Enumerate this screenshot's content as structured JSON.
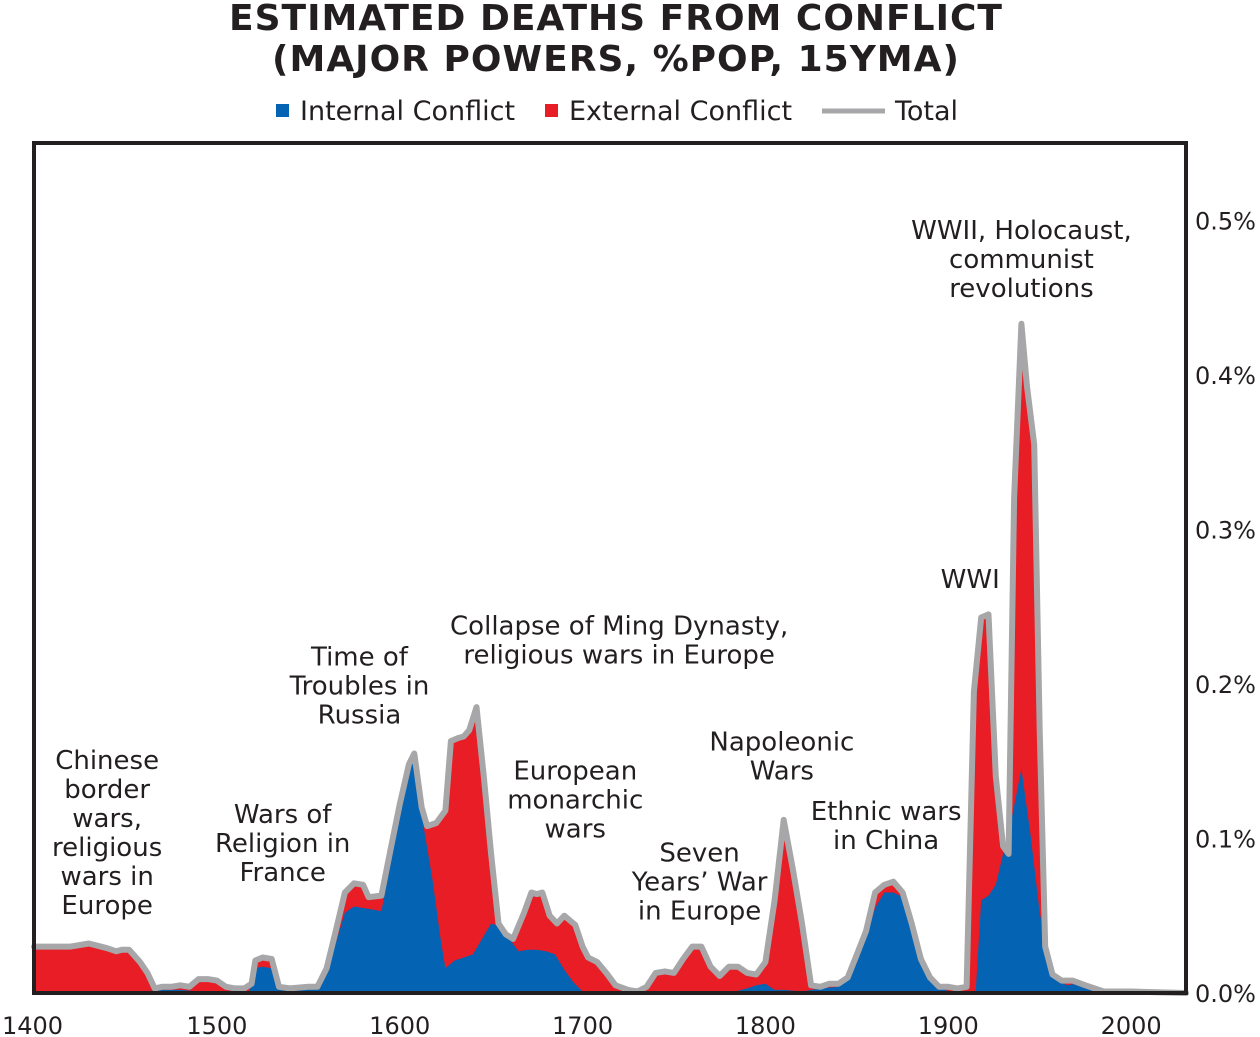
{
  "chart_data": {
    "type": "area",
    "title_lines": [
      "ESTIMATED DEATHS FROM CONFLICT",
      "(MAJOR POWERS, %POP, 15YMA)"
    ],
    "legend": [
      {
        "name": "Internal Conflict",
        "color": "#0563b3",
        "kind": "square"
      },
      {
        "name": "External Conflict",
        "color": "#e81d25",
        "kind": "square"
      },
      {
        "name": "Total",
        "color": "#a7a7a9",
        "kind": "line"
      }
    ],
    "legend_position": "top-center",
    "xlim": [
      1400,
      2030
    ],
    "ylim": [
      0,
      0.55
    ],
    "y_axis_side": "right",
    "grid": false,
    "x_ticks": [
      {
        "value": 1400,
        "label": "1400"
      },
      {
        "value": 1500,
        "label": "1500"
      },
      {
        "value": 1600,
        "label": "1600"
      },
      {
        "value": 1700,
        "label": "1700"
      },
      {
        "value": 1800,
        "label": "1800"
      },
      {
        "value": 1900,
        "label": "1900"
      },
      {
        "value": 2000,
        "label": "2000"
      }
    ],
    "y_ticks": [
      {
        "value": 0.0,
        "label": "0.0%"
      },
      {
        "value": 0.1,
        "label": "0.1%"
      },
      {
        "value": 0.2,
        "label": "0.2%"
      },
      {
        "value": 0.3,
        "label": "0.3%"
      },
      {
        "value": 0.4,
        "label": "0.4%"
      },
      {
        "value": 0.5,
        "label": "0.5%"
      }
    ],
    "series": [
      {
        "name": "Internal Conflict",
        "color": "#0563b3",
        "points": [
          [
            1400,
            0
          ],
          [
            1440,
            0
          ],
          [
            1450,
            0
          ],
          [
            1460,
            0.001
          ],
          [
            1470,
            0.002
          ],
          [
            1480,
            0.002
          ],
          [
            1490,
            0.001
          ],
          [
            1500,
            0.001
          ],
          [
            1510,
            0.001
          ],
          [
            1518,
            0.001
          ],
          [
            1520,
            0.016
          ],
          [
            1525,
            0.017
          ],
          [
            1530,
            0.016
          ],
          [
            1533,
            0.004
          ],
          [
            1540,
            0.002
          ],
          [
            1550,
            0.003
          ],
          [
            1555,
            0.003
          ],
          [
            1560,
            0.013
          ],
          [
            1565,
            0.032
          ],
          [
            1570,
            0.052
          ],
          [
            1575,
            0.056
          ],
          [
            1580,
            0.055
          ],
          [
            1585,
            0.054
          ],
          [
            1590,
            0.053
          ],
          [
            1595,
            0.084
          ],
          [
            1600,
            0.116
          ],
          [
            1605,
            0.145
          ],
          [
            1608,
            0.152
          ],
          [
            1612,
            0.115
          ],
          [
            1618,
            0.073
          ],
          [
            1622,
            0.038
          ],
          [
            1625,
            0.016
          ],
          [
            1630,
            0.021
          ],
          [
            1635,
            0.023
          ],
          [
            1640,
            0.025
          ],
          [
            1645,
            0.035
          ],
          [
            1650,
            0.045
          ],
          [
            1655,
            0.043
          ],
          [
            1660,
            0.035
          ],
          [
            1665,
            0.027
          ],
          [
            1670,
            0.028
          ],
          [
            1675,
            0.028
          ],
          [
            1680,
            0.027
          ],
          [
            1685,
            0.025
          ],
          [
            1690,
            0.015
          ],
          [
            1695,
            0.007
          ],
          [
            1700,
            0.001
          ],
          [
            1720,
            0
          ],
          [
            1780,
            0
          ],
          [
            1790,
            0.003
          ],
          [
            1795,
            0.005
          ],
          [
            1800,
            0.006
          ],
          [
            1805,
            0.002
          ],
          [
            1810,
            0.002
          ],
          [
            1820,
            0.001
          ],
          [
            1830,
            0.003
          ],
          [
            1840,
            0.004
          ],
          [
            1845,
            0.008
          ],
          [
            1850,
            0.02
          ],
          [
            1855,
            0.035
          ],
          [
            1860,
            0.055
          ],
          [
            1865,
            0.065
          ],
          [
            1870,
            0.065
          ],
          [
            1875,
            0.062
          ],
          [
            1880,
            0.04
          ],
          [
            1885,
            0.02
          ],
          [
            1890,
            0.008
          ],
          [
            1900,
            0.001
          ],
          [
            1910,
            0
          ],
          [
            1915,
            0.001
          ],
          [
            1918,
            0.06
          ],
          [
            1922,
            0.063
          ],
          [
            1926,
            0.07
          ],
          [
            1930,
            0.09
          ],
          [
            1935,
            0.115
          ],
          [
            1940,
            0.145
          ],
          [
            1945,
            0.102
          ],
          [
            1950,
            0.052
          ],
          [
            1955,
            0.02
          ],
          [
            1960,
            0.008
          ],
          [
            1965,
            0.005
          ],
          [
            1970,
            0.006
          ],
          [
            1980,
            0.001
          ],
          [
            2000,
            0
          ],
          [
            2030,
            0
          ]
        ]
      },
      {
        "name": "Total",
        "color": "#a7a7a9",
        "points": [
          [
            1400,
            0.03
          ],
          [
            1410,
            0.03
          ],
          [
            1420,
            0.03
          ],
          [
            1430,
            0.032
          ],
          [
            1440,
            0.029
          ],
          [
            1445,
            0.027
          ],
          [
            1448,
            0.028
          ],
          [
            1452,
            0.028
          ],
          [
            1458,
            0.02
          ],
          [
            1462,
            0.013
          ],
          [
            1466,
            0.003
          ],
          [
            1470,
            0.004
          ],
          [
            1475,
            0.004
          ],
          [
            1480,
            0.005
          ],
          [
            1485,
            0.004
          ],
          [
            1490,
            0.009
          ],
          [
            1495,
            0.009
          ],
          [
            1500,
            0.008
          ],
          [
            1505,
            0.004
          ],
          [
            1510,
            0.003
          ],
          [
            1515,
            0.003
          ],
          [
            1519,
            0.006
          ],
          [
            1521,
            0.021
          ],
          [
            1525,
            0.023
          ],
          [
            1530,
            0.022
          ],
          [
            1534,
            0.004
          ],
          [
            1540,
            0.003
          ],
          [
            1550,
            0.004
          ],
          [
            1555,
            0.004
          ],
          [
            1560,
            0.016
          ],
          [
            1565,
            0.04
          ],
          [
            1570,
            0.065
          ],
          [
            1575,
            0.071
          ],
          [
            1580,
            0.07
          ],
          [
            1583,
            0.062
          ],
          [
            1590,
            0.063
          ],
          [
            1595,
            0.093
          ],
          [
            1600,
            0.122
          ],
          [
            1605,
            0.148
          ],
          [
            1608,
            0.155
          ],
          [
            1612,
            0.12
          ],
          [
            1615,
            0.108
          ],
          [
            1620,
            0.11
          ],
          [
            1625,
            0.118
          ],
          [
            1628,
            0.163
          ],
          [
            1632,
            0.165
          ],
          [
            1635,
            0.166
          ],
          [
            1638,
            0.17
          ],
          [
            1642,
            0.185
          ],
          [
            1646,
            0.14
          ],
          [
            1650,
            0.09
          ],
          [
            1654,
            0.045
          ],
          [
            1658,
            0.038
          ],
          [
            1662,
            0.035
          ],
          [
            1668,
            0.052
          ],
          [
            1672,
            0.065
          ],
          [
            1675,
            0.064
          ],
          [
            1678,
            0.065
          ],
          [
            1682,
            0.05
          ],
          [
            1686,
            0.045
          ],
          [
            1690,
            0.05
          ],
          [
            1693,
            0.047
          ],
          [
            1696,
            0.044
          ],
          [
            1700,
            0.03
          ],
          [
            1703,
            0.023
          ],
          [
            1708,
            0.02
          ],
          [
            1713,
            0.013
          ],
          [
            1718,
            0.005
          ],
          [
            1725,
            0.002
          ],
          [
            1730,
            0.001
          ],
          [
            1735,
            0.004
          ],
          [
            1740,
            0.013
          ],
          [
            1745,
            0.014
          ],
          [
            1750,
            0.013
          ],
          [
            1755,
            0.022
          ],
          [
            1760,
            0.03
          ],
          [
            1765,
            0.03
          ],
          [
            1770,
            0.017
          ],
          [
            1775,
            0.011
          ],
          [
            1780,
            0.017
          ],
          [
            1785,
            0.017
          ],
          [
            1790,
            0.013
          ],
          [
            1795,
            0.012
          ],
          [
            1800,
            0.02
          ],
          [
            1805,
            0.06
          ],
          [
            1810,
            0.112
          ],
          [
            1815,
            0.08
          ],
          [
            1820,
            0.045
          ],
          [
            1825,
            0.005
          ],
          [
            1830,
            0.004
          ],
          [
            1835,
            0.006
          ],
          [
            1840,
            0.006
          ],
          [
            1845,
            0.01
          ],
          [
            1850,
            0.025
          ],
          [
            1855,
            0.04
          ],
          [
            1860,
            0.065
          ],
          [
            1865,
            0.07
          ],
          [
            1870,
            0.072
          ],
          [
            1875,
            0.065
          ],
          [
            1880,
            0.045
          ],
          [
            1885,
            0.022
          ],
          [
            1890,
            0.01
          ],
          [
            1895,
            0.004
          ],
          [
            1900,
            0.004
          ],
          [
            1905,
            0.003
          ],
          [
            1910,
            0.004
          ],
          [
            1914,
            0.195
          ],
          [
            1918,
            0.243
          ],
          [
            1922,
            0.245
          ],
          [
            1926,
            0.14
          ],
          [
            1930,
            0.095
          ],
          [
            1933,
            0.09
          ],
          [
            1936,
            0.32
          ],
          [
            1940,
            0.433
          ],
          [
            1943,
            0.393
          ],
          [
            1947,
            0.355
          ],
          [
            1950,
            0.17
          ],
          [
            1953,
            0.03
          ],
          [
            1957,
            0.012
          ],
          [
            1962,
            0.008
          ],
          [
            1968,
            0.008
          ],
          [
            1975,
            0.005
          ],
          [
            1985,
            0.001
          ],
          [
            2000,
            0.001
          ],
          [
            2030,
            0
          ]
        ]
      }
    ],
    "annotations": [
      {
        "lines": [
          "Chinese",
          "border",
          "wars,",
          "religious",
          "wars in",
          "Europe"
        ],
        "x": 1440,
        "y": 0.145
      },
      {
        "lines": [
          "Wars of",
          "Religion in",
          "France"
        ],
        "x": 1536,
        "y": 0.11
      },
      {
        "lines": [
          "Time of",
          "Troubles in",
          "Russia"
        ],
        "x": 1578,
        "y": 0.212
      },
      {
        "lines": [
          "Collapse of Ming Dynasty,",
          "religious wars in Europe"
        ],
        "x": 1720,
        "y": 0.232
      },
      {
        "lines": [
          "European",
          "monarchic",
          "wars"
        ],
        "x": 1696,
        "y": 0.138
      },
      {
        "lines": [
          "Seven",
          "Years’ War",
          "in Europe"
        ],
        "x": 1764,
        "y": 0.085
      },
      {
        "lines": [
          "Napoleonic",
          "Wars"
        ],
        "x": 1809,
        "y": 0.157
      },
      {
        "lines": [
          "Ethnic wars",
          "in China"
        ],
        "x": 1866,
        "y": 0.112
      },
      {
        "lines": [
          "WWI"
        ],
        "x": 1912,
        "y": 0.262
      },
      {
        "lines": [
          "WWII, Holocaust,",
          "communist",
          "revolutions"
        ],
        "x": 1940,
        "y": 0.488
      }
    ]
  }
}
